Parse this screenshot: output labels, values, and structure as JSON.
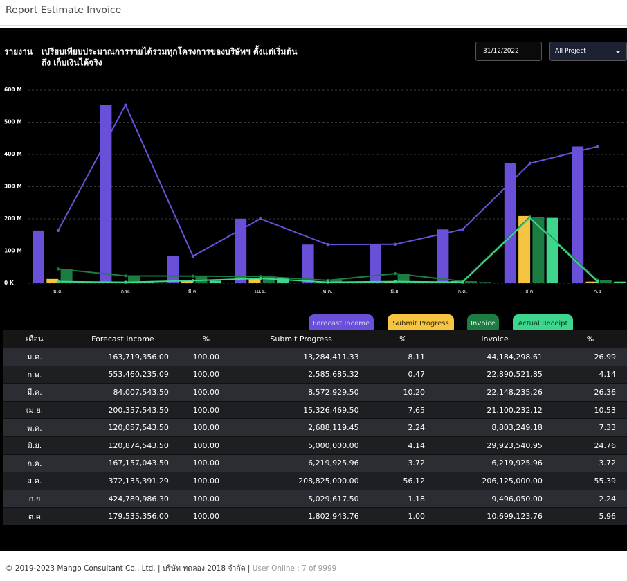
{
  "header": {
    "title": "Report Estimate Invoice"
  },
  "controls": {
    "date": "31/12/2022",
    "project": "All Project"
  },
  "chart_data": {
    "type": "bar",
    "title_label": "รายงาน",
    "title": "เปรียบเทียบประมาณการรายได้รวมทุกโครงการของบริษัทฯ ตั้งแต่เริ่มต้น",
    "subtitle": "ถึง เก็บเงินได้จริง",
    "categories": [
      "ม.ค.",
      "ก.พ.",
      "มี.ค.",
      "เม.ย.",
      "พ.ค.",
      "มิ.ย.",
      "ก.ค.",
      "ส.ค.",
      "ก.ย"
    ],
    "series": [
      {
        "name": "Forecast Income",
        "color": "#6a4fd8",
        "line": true,
        "values": [
          163719356,
          553460235.09,
          84007543.5,
          200357543.5,
          120057543.5,
          120874543.5,
          167157043.5,
          372135391.29,
          424789986.3
        ]
      },
      {
        "name": "Submit Progress",
        "color": "#f5c542",
        "line": false,
        "values": [
          13284411.33,
          2585685.32,
          8572929.5,
          15326469.5,
          2688119.45,
          5000000,
          6219925.96,
          208825000,
          5029617.5
        ]
      },
      {
        "name": "Invoice",
        "color": "#1c7d43",
        "line": true,
        "values": [
          44184298.61,
          22890521.85,
          22148235.26,
          21100232.12,
          8803249.18,
          29923540.95,
          6219925.96,
          206125000,
          9496050
        ]
      },
      {
        "name": "Actual Receipt",
        "color": "#3ed68d",
        "line": true,
        "values": [
          5000000,
          3000000,
          8000000,
          15000000,
          3000000,
          5000000,
          3000000,
          203000000,
          5000000
        ]
      }
    ],
    "ylim": [
      0,
      600000000
    ],
    "yticks": [
      {
        "value": 0,
        "label": "0 K"
      },
      {
        "value": 100000000,
        "label": "100 M"
      },
      {
        "value": 200000000,
        "label": "200 M"
      },
      {
        "value": 300000000,
        "label": "300 M"
      },
      {
        "value": 400000000,
        "label": "400 M"
      },
      {
        "value": 500000000,
        "label": "500 M"
      },
      {
        "value": 600000000,
        "label": "600 M"
      }
    ],
    "grid": true
  },
  "table": {
    "columns": [
      "เดือน",
      "Forecast Income",
      "%",
      "Submit Progress",
      "%",
      "Invoice",
      "%"
    ],
    "rows": [
      [
        "ม.ค.",
        "163,719,356.00",
        "100.00",
        "13,284,411.33",
        "8.11",
        "44,184,298.61",
        "26.99"
      ],
      [
        "ก.พ.",
        "553,460,235.09",
        "100.00",
        "2,585,685.32",
        "0.47",
        "22,890,521.85",
        "4.14"
      ],
      [
        "มี.ค.",
        "84,007,543.50",
        "100.00",
        "8,572,929.50",
        "10.20",
        "22,148,235.26",
        "26.36"
      ],
      [
        "เม.ย.",
        "200,357,543.50",
        "100.00",
        "15,326,469.50",
        "7.65",
        "21,100,232.12",
        "10.53"
      ],
      [
        "พ.ค.",
        "120,057,543.50",
        "100.00",
        "2,688,119.45",
        "2.24",
        "8,803,249.18",
        "7.33"
      ],
      [
        "มิ.ย.",
        "120,874,543.50",
        "100.00",
        "5,000,000.00",
        "4.14",
        "29,923,540.95",
        "24.76"
      ],
      [
        "ก.ค.",
        "167,157,043.50",
        "100.00",
        "6,219,925.96",
        "3.72",
        "6,219,925.96",
        "3.72"
      ],
      [
        "ส.ค.",
        "372,135,391.29",
        "100.00",
        "208,825,000.00",
        "56.12",
        "206,125,000.00",
        "55.39"
      ],
      [
        "ก.ย",
        "424,789,986.30",
        "100.00",
        "5,029,617.50",
        "1.18",
        "9,496,050.00",
        "2.24"
      ],
      [
        "ต.ค",
        "179,535,356.00",
        "100.00",
        "1,802,943.76",
        "1.00",
        "10,699,123.76",
        "5.96"
      ]
    ]
  },
  "footer": {
    "copyright": "© 2019-2023 Mango Consultant Co., Ltd. | บริษัท ทดลอง 2018 จำกัด |",
    "user_online": "User Online : 7 of 9999"
  }
}
